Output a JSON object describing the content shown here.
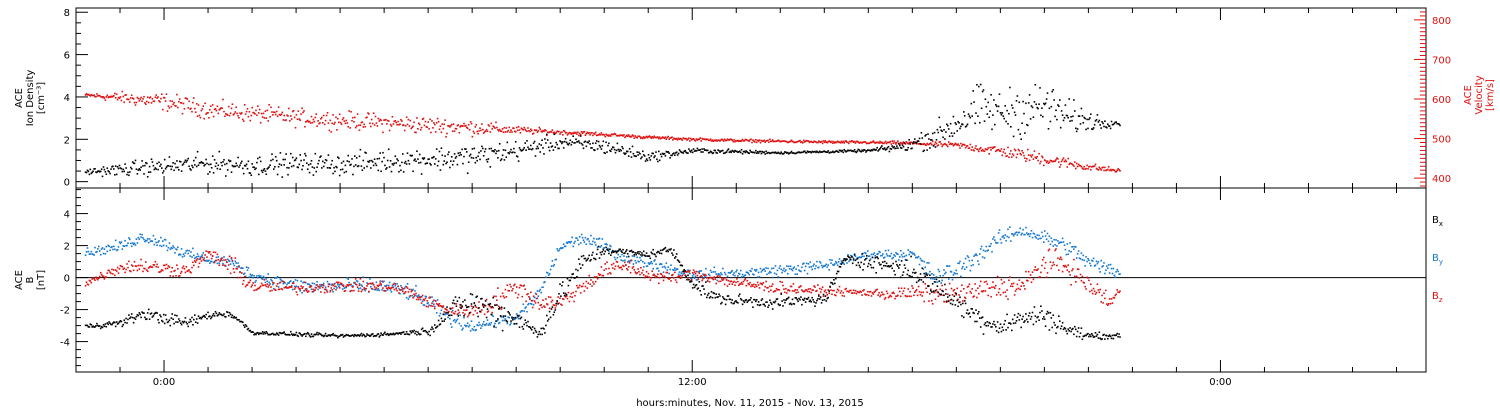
{
  "chart_data": [
    {
      "type": "scatter",
      "title": "",
      "x_axis": {
        "label": "hours:minutes, Nov. 11, 2015 - Nov. 13, 2015",
        "unit": "hours",
        "range": [
          -2,
          28.67
        ],
        "ticks": [
          {
            "value": 0,
            "label": "0:00"
          },
          {
            "value": 12,
            "label": "12:00"
          },
          {
            "value": 24,
            "label": "0:00"
          }
        ]
      },
      "y_left": {
        "label_lines": [
          "ACE",
          "Ion Density",
          "[cm⁻³]"
        ],
        "range": [
          -0.3,
          8.2
        ],
        "ticks": [
          0,
          2,
          4,
          6,
          8
        ],
        "color": "#000000"
      },
      "y_right": {
        "label_lines": [
          "ACE",
          "Velocity",
          "[km/s]"
        ],
        "range": [
          375,
          830
        ],
        "ticks": [
          400,
          500,
          600,
          700,
          800
        ],
        "color": "#e01010"
      },
      "series": [
        {
          "name": "",
          "axis": "left",
          "color": "#000000",
          "x": [
            -1.8,
            -1.0,
            -0.5,
            0.0,
            1.0,
            2.0,
            3.0,
            4.0,
            5.0,
            6.0,
            7.0,
            8.0,
            9.0,
            10.0,
            11.0,
            12.0,
            13.0,
            14.0,
            15.0,
            16.0,
            16.8,
            17.5,
            18.0,
            18.5,
            19.0,
            19.5,
            20.0,
            20.5,
            21.0,
            21.7
          ],
          "y": [
            0.5,
            0.6,
            0.7,
            0.75,
            0.9,
            0.8,
            0.9,
            0.85,
            1.0,
            1.1,
            1.2,
            1.5,
            1.9,
            1.7,
            1.2,
            1.5,
            1.45,
            1.4,
            1.45,
            1.5,
            1.7,
            2.2,
            2.8,
            3.5,
            3.3,
            3.4,
            3.6,
            3.1,
            2.9,
            2.8
          ],
          "spread": [
            0.1,
            0.25,
            0.3,
            0.35,
            0.4,
            0.4,
            0.4,
            0.4,
            0.45,
            0.45,
            0.5,
            0.4,
            0.3,
            0.3,
            0.2,
            0.1,
            0.08,
            0.05,
            0.05,
            0.05,
            0.2,
            0.5,
            0.7,
            0.9,
            0.8,
            1.0,
            1.0,
            0.7,
            0.4,
            0.1
          ]
        },
        {
          "name": "",
          "axis": "right",
          "color": "#e01010",
          "x": [
            -1.8,
            -1.0,
            0.0,
            1.0,
            2.0,
            3.0,
            4.0,
            5.0,
            6.0,
            7.0,
            8.0,
            9.0,
            10.0,
            11.0,
            12.0,
            13.0,
            14.0,
            15.0,
            16.0,
            17.0,
            18.0,
            19.0,
            20.0,
            21.0,
            21.7
          ],
          "y": [
            612,
            605,
            595,
            575,
            565,
            555,
            548,
            542,
            535,
            530,
            523,
            518,
            512,
            505,
            500,
            497,
            495,
            493,
            492,
            490,
            485,
            470,
            450,
            430,
            420
          ],
          "spread": [
            3,
            12,
            18,
            18,
            18,
            18,
            18,
            18,
            18,
            16,
            8,
            5,
            4,
            3,
            3,
            3,
            3,
            3,
            3,
            4,
            6,
            12,
            14,
            8,
            4
          ]
        }
      ]
    },
    {
      "type": "scatter",
      "title": "",
      "x_axis": {
        "range": [
          -2,
          28.67
        ]
      },
      "y_left": {
        "label_lines": [
          "ACE",
          "B",
          "[nT]"
        ],
        "range": [
          -5.9,
          5.6
        ],
        "ticks": [
          -4,
          -2,
          0,
          2,
          4
        ],
        "zero_line": true
      },
      "legend": {
        "position": "right",
        "entries": [
          {
            "name": "B",
            "sub": "x",
            "color": "#000000"
          },
          {
            "name": "B",
            "sub": "y",
            "color": "#1478d2"
          },
          {
            "name": "B",
            "sub": "z",
            "color": "#e01010"
          }
        ]
      },
      "series": [
        {
          "name": "Bx",
          "color": "#000000",
          "x": [
            -1.8,
            -1.0,
            -0.5,
            0.0,
            0.5,
            1.0,
            1.5,
            2.0,
            3.0,
            4.0,
            5.0,
            5.5,
            6.0,
            6.5,
            7.0,
            7.5,
            8.0,
            8.5,
            9.0,
            9.5,
            10.0,
            10.5,
            11.0,
            11.5,
            12.0,
            12.5,
            13.0,
            14.0,
            15.0,
            15.5,
            16.0,
            16.5,
            17.0,
            18.0,
            18.5,
            19.0,
            19.5,
            20.0,
            20.5,
            21.0,
            21.7
          ],
          "y": [
            -3.0,
            -2.8,
            -2.2,
            -2.5,
            -2.8,
            -2.3,
            -2.2,
            -3.4,
            -3.5,
            -3.6,
            -3.5,
            -3.4,
            -3.3,
            -2.0,
            -1.5,
            -2.0,
            -2.5,
            -3.5,
            -1.0,
            1.0,
            1.8,
            1.6,
            1.5,
            1.8,
            -0.3,
            -1.2,
            -1.4,
            -1.5,
            -1.3,
            1.4,
            1.0,
            0.8,
            0.5,
            -1.5,
            -2.5,
            -3.0,
            -2.5,
            -2.3,
            -3.2,
            -3.6,
            -3.6
          ],
          "spread": [
            0.1,
            0.2,
            0.3,
            0.3,
            0.3,
            0.2,
            0.2,
            0.1,
            0.1,
            0.1,
            0.1,
            0.1,
            0.2,
            0.5,
            0.8,
            0.8,
            0.6,
            0.3,
            0.6,
            0.5,
            0.3,
            0.2,
            0.2,
            0.2,
            0.4,
            0.3,
            0.3,
            0.3,
            0.3,
            0.3,
            0.4,
            0.5,
            0.6,
            0.5,
            0.6,
            0.5,
            0.5,
            0.6,
            0.4,
            0.2,
            0.1
          ]
        },
        {
          "name": "By",
          "color": "#1478d2",
          "x": [
            -1.8,
            -1.0,
            -0.5,
            0.0,
            0.5,
            1.0,
            1.5,
            2.0,
            3.0,
            4.0,
            5.0,
            5.5,
            6.0,
            6.5,
            7.0,
            7.5,
            8.0,
            8.5,
            9.0,
            9.5,
            10.0,
            10.5,
            11.0,
            11.5,
            12.0,
            13.0,
            14.0,
            15.0,
            16.0,
            17.0,
            17.5,
            18.0,
            18.5,
            19.0,
            19.5,
            20.0,
            20.5,
            21.0,
            21.5,
            21.7
          ],
          "y": [
            1.6,
            2.0,
            2.6,
            2.2,
            1.5,
            1.2,
            1.0,
            0.2,
            -0.5,
            -0.5,
            -0.5,
            -0.8,
            -1.5,
            -2.5,
            -3.0,
            -2.7,
            -2.5,
            -1.0,
            2.0,
            2.5,
            2.0,
            1.2,
            1.0,
            0.6,
            0.2,
            0.3,
            0.5,
            0.8,
            1.5,
            1.5,
            0.0,
            0.5,
            1.5,
            2.5,
            3.0,
            2.5,
            2.0,
            1.0,
            0.5,
            0.4
          ],
          "spread": [
            0.2,
            0.3,
            0.3,
            0.3,
            0.3,
            0.3,
            0.3,
            0.3,
            0.4,
            0.4,
            0.4,
            0.4,
            0.4,
            0.4,
            0.3,
            0.3,
            0.3,
            0.4,
            0.3,
            0.3,
            0.3,
            0.3,
            0.3,
            0.3,
            0.3,
            0.3,
            0.3,
            0.3,
            0.2,
            0.3,
            0.5,
            0.5,
            0.5,
            0.4,
            0.3,
            0.4,
            0.4,
            0.4,
            0.4,
            0.3
          ]
        },
        {
          "name": "Bz",
          "color": "#e01010",
          "x": [
            -1.8,
            -1.0,
            -0.5,
            0.0,
            0.5,
            1.0,
            1.5,
            2.0,
            3.0,
            4.0,
            5.0,
            5.5,
            6.0,
            6.5,
            7.0,
            7.5,
            8.0,
            8.5,
            9.0,
            9.5,
            10.0,
            10.5,
            11.0,
            11.5,
            12.0,
            13.0,
            14.0,
            15.0,
            16.0,
            16.5,
            17.0,
            17.5,
            18.0,
            18.5,
            19.0,
            19.5,
            20.0,
            20.5,
            21.0,
            21.5,
            21.7
          ],
          "y": [
            -0.3,
            0.7,
            0.8,
            0.6,
            0.5,
            1.5,
            0.8,
            -0.5,
            -0.6,
            -0.5,
            -0.5,
            -0.8,
            -1.5,
            -2.0,
            -2.0,
            -1.5,
            -0.5,
            -1.5,
            -1.5,
            -0.5,
            0.5,
            0.8,
            0.2,
            0.0,
            0.3,
            -0.3,
            -0.6,
            -0.8,
            -0.9,
            -1.0,
            -0.9,
            -1.0,
            -1.0,
            -0.8,
            -0.5,
            -0.5,
            1.0,
            0.8,
            -0.5,
            -1.5,
            -0.7
          ],
          "spread": [
            0.2,
            0.3,
            0.4,
            0.4,
            0.3,
            0.3,
            0.5,
            0.4,
            0.3,
            0.3,
            0.3,
            0.3,
            0.3,
            0.3,
            0.4,
            0.6,
            0.5,
            0.5,
            0.4,
            0.4,
            0.4,
            0.4,
            0.3,
            0.3,
            0.3,
            0.3,
            0.3,
            0.2,
            0.2,
            0.3,
            0.4,
            0.5,
            0.5,
            0.6,
            0.6,
            0.6,
            0.7,
            0.6,
            0.5,
            0.5,
            0.3
          ]
        }
      ]
    }
  ]
}
